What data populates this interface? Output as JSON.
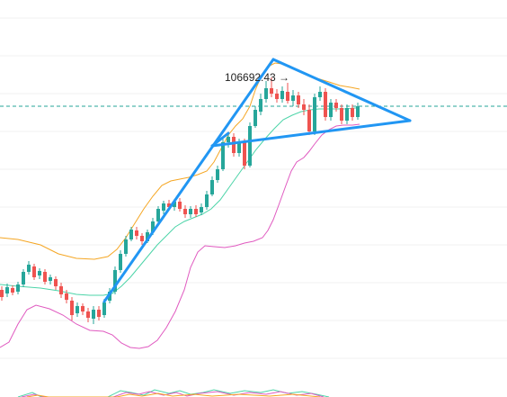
{
  "chart_data": {
    "type": "candlestick",
    "annotations": [
      {
        "label": "106692.43",
        "arrow": "→"
      }
    ],
    "colors": {
      "up": "#26a69a",
      "down": "#ef5350",
      "band_upper": "#f5a623",
      "band_middle": "#4cd4a8",
      "band_lower": "#e05ac0",
      "pattern_lines": "#2196f3",
      "price_line": "#26a69a",
      "background": "#ffffff"
    },
    "price_line": {
      "style": "dashed",
      "color": "#26a69a"
    },
    "pattern": "pennant",
    "grid": false,
    "legend": "none"
  }
}
